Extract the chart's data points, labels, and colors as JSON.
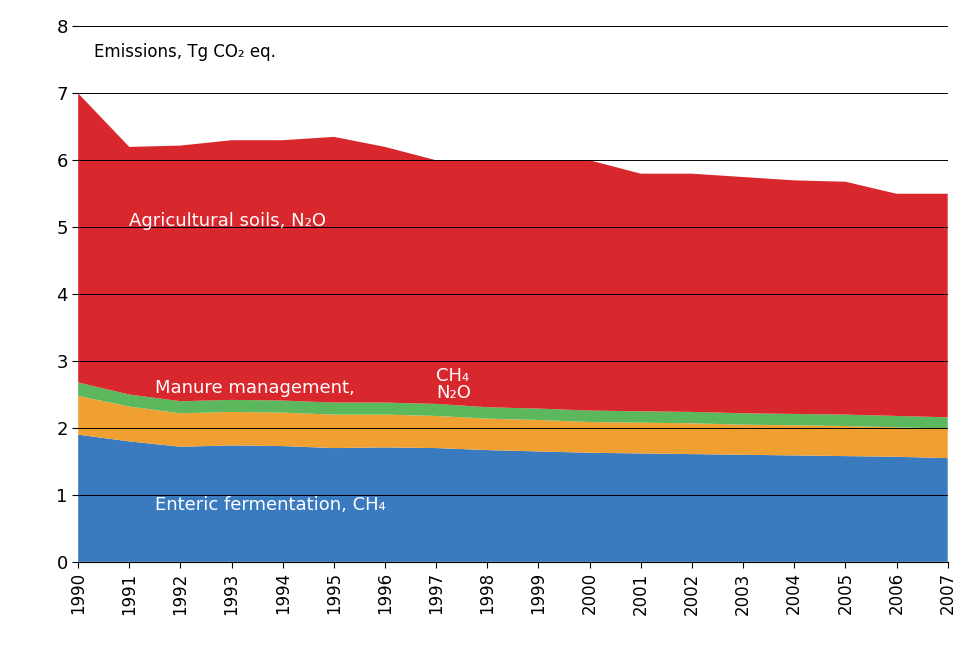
{
  "years": [
    1990,
    1991,
    1992,
    1993,
    1994,
    1995,
    1996,
    1997,
    1998,
    1999,
    2000,
    2001,
    2002,
    2003,
    2004,
    2005,
    2006,
    2007
  ],
  "enteric_fermentation": [
    1.9,
    1.8,
    1.72,
    1.74,
    1.73,
    1.7,
    1.71,
    1.7,
    1.67,
    1.65,
    1.63,
    1.62,
    1.61,
    1.6,
    1.59,
    1.58,
    1.57,
    1.55
  ],
  "manure_n2o": [
    0.58,
    0.52,
    0.5,
    0.5,
    0.5,
    0.5,
    0.49,
    0.48,
    0.47,
    0.47,
    0.46,
    0.46,
    0.46,
    0.45,
    0.45,
    0.45,
    0.44,
    0.44
  ],
  "manure_ch4": [
    0.2,
    0.18,
    0.18,
    0.18,
    0.18,
    0.18,
    0.18,
    0.18,
    0.17,
    0.17,
    0.17,
    0.17,
    0.17,
    0.17,
    0.17,
    0.17,
    0.17,
    0.17
  ],
  "agri_soils_n2o": [
    4.32,
    3.7,
    3.82,
    3.88,
    3.89,
    3.97,
    3.82,
    3.64,
    3.69,
    3.71,
    3.74,
    3.55,
    3.56,
    3.53,
    3.49,
    3.48,
    3.32,
    3.34
  ],
  "colors": {
    "enteric_fermentation": "#3a7abf",
    "manure_n2o": "#f0a030",
    "manure_ch4": "#5cb85c",
    "agri_soils_n2o": "#d9272e"
  },
  "label_agri": "Agricultural soils, N₂O",
  "label_enteric": "Enteric fermentation, CH₄",
  "label_manure_mgmt": "Manure management,",
  "label_ch4": "CH₄",
  "label_n2o": "N₂O",
  "ylabel_text": "Emissions, Tg CO₂ eq.",
  "ylim": [
    0,
    8
  ],
  "yticks": [
    0,
    1,
    2,
    3,
    4,
    5,
    6,
    7,
    8
  ],
  "background_color": "#ffffff"
}
